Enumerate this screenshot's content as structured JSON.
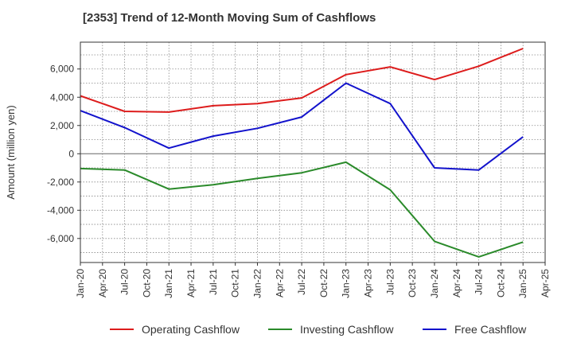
{
  "chart_data": {
    "type": "line",
    "title": "[2353]  Trend of 12-Month Moving Sum of Cashflows",
    "ylabel": "Amount (million yen)",
    "xlabel": "",
    "ylim": [
      -7700,
      7900
    ],
    "yticks": [
      -6000,
      -4000,
      -2000,
      0,
      2000,
      4000,
      6000
    ],
    "ytick_labels": [
      "-6,000",
      "-4,000",
      "-2,000",
      "0",
      "2,000",
      "4,000",
      "6,000"
    ],
    "x_ticks": [
      "Jan-20",
      "Apr-20",
      "Jul-20",
      "Oct-20",
      "Jan-21",
      "Apr-21",
      "Jul-21",
      "Oct-21",
      "Jan-22",
      "Apr-22",
      "Jul-22",
      "Oct-22",
      "Jan-23",
      "Apr-23",
      "Jul-23",
      "Oct-23",
      "Jan-24",
      "Apr-24",
      "Jul-24",
      "Oct-24",
      "Jan-25",
      "Apr-25"
    ],
    "x": [
      "Jan-20",
      "Jul-20",
      "Jan-21",
      "Jul-21",
      "Jan-22",
      "Jul-22",
      "Jan-23",
      "Jul-23",
      "Jan-24",
      "Jul-24",
      "Jan-25"
    ],
    "grid": true,
    "legend_position": "bottom",
    "series": [
      {
        "name": "Operating Cashflow",
        "color": "#dd1c1c",
        "values": [
          4100,
          3000,
          2950,
          3400,
          3550,
          3950,
          5600,
          6150,
          5250,
          6200,
          7450
        ]
      },
      {
        "name": "Investing Cashflow",
        "color": "#2a8a2a",
        "values": [
          -1050,
          -1150,
          -2500,
          -2200,
          -1750,
          -1350,
          -600,
          -2550,
          -6200,
          -7300,
          -6250
        ]
      },
      {
        "name": "Free Cashflow",
        "color": "#1212cc",
        "values": [
          3050,
          1850,
          400,
          1250,
          1800,
          2600,
          5000,
          3550,
          -1000,
          -1150,
          1200
        ]
      }
    ]
  }
}
